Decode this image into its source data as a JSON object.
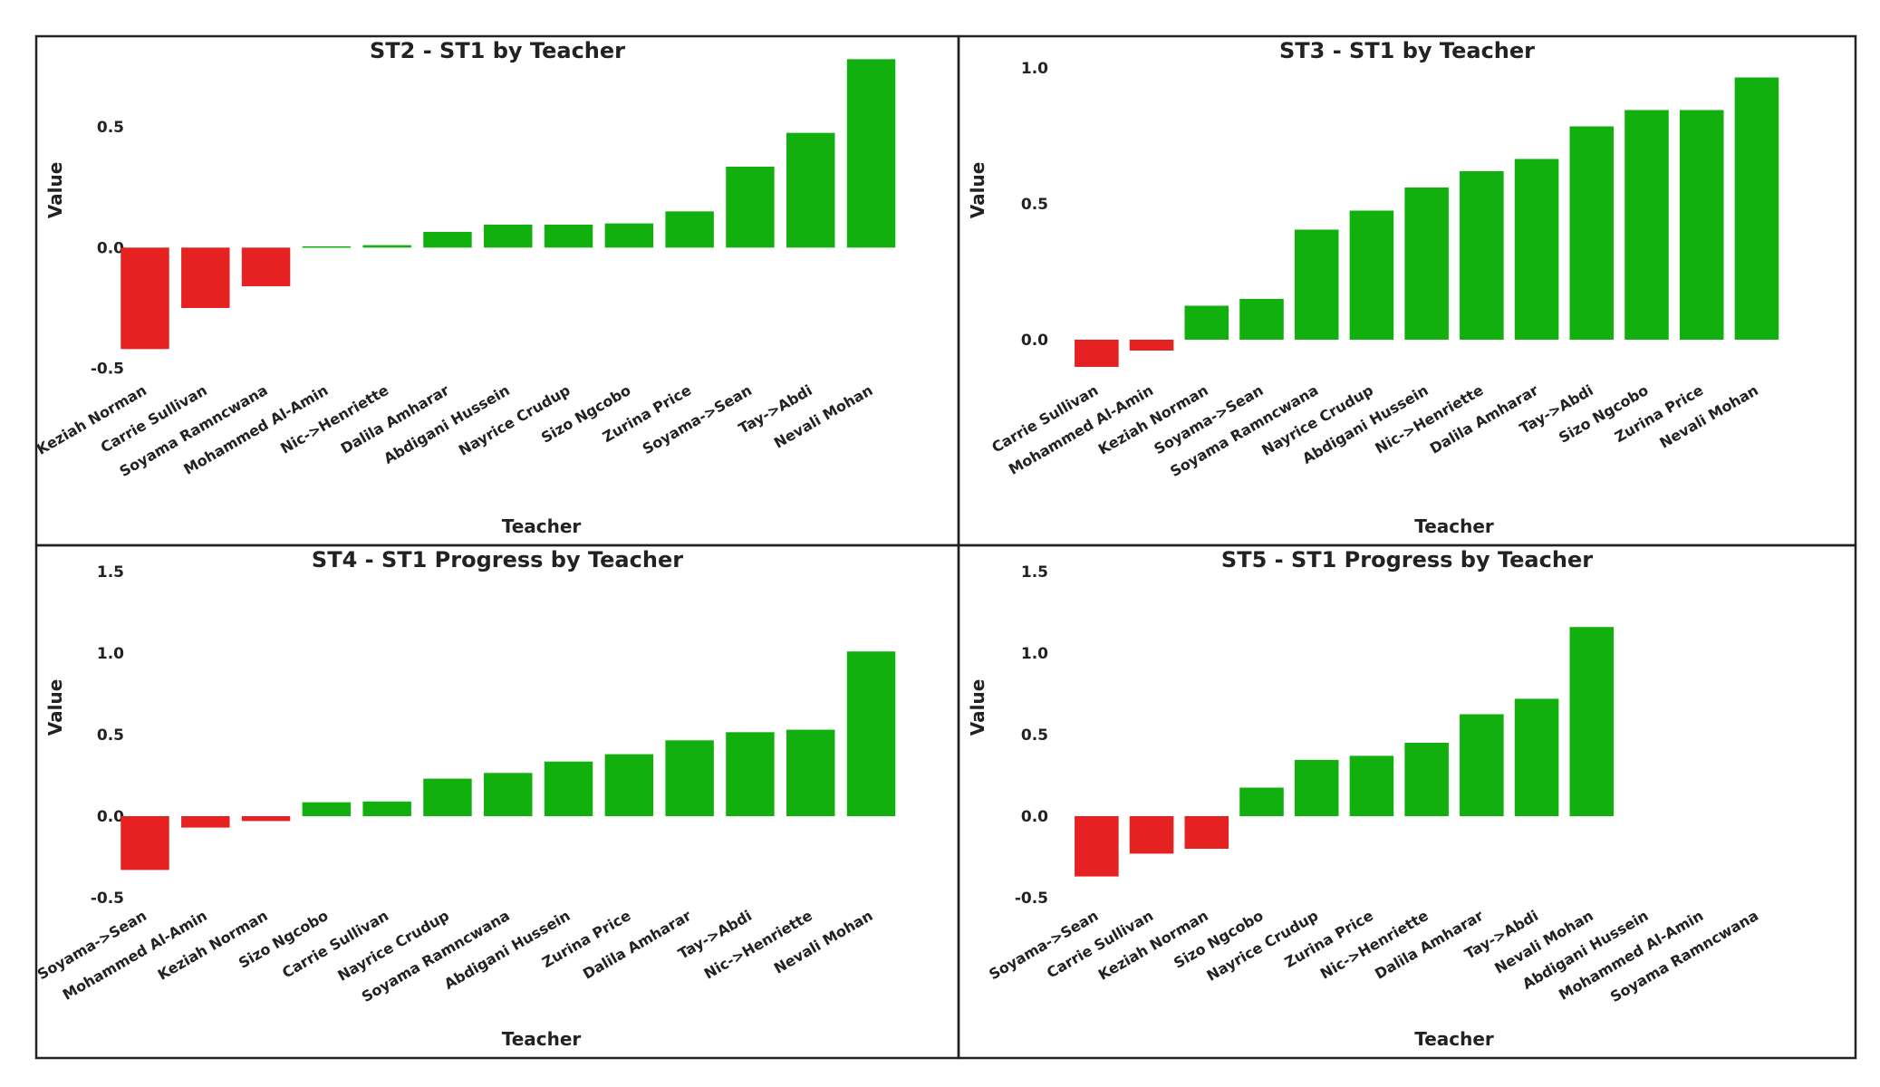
{
  "colors": {
    "positive": "#11b00e",
    "negative": "#e52121",
    "text": "#222222",
    "border": "#222222"
  },
  "chart_data": [
    {
      "type": "bar",
      "title": "ST2 - ST1 by Teacher",
      "xlabel": "Teacher",
      "ylabel": "Value",
      "ylim": [
        -0.55,
        0.8
      ],
      "yticks": [
        -0.5,
        0.0,
        0.5
      ],
      "grid": false,
      "categories": [
        "Keziah Norman",
        "Carrie Sullivan",
        "Soyama Ramncwana",
        "Mohammed Al-Amin",
        "Nic->Henriette",
        "Dalila Amharar",
        "Abdigani Hussein",
        "Nayrice Crudup",
        "Sizo Ngcobo",
        "Zurina Price",
        "Soyama->Sean",
        "Tay->Abdi",
        "Nevali Mohan"
      ],
      "values": [
        -0.42,
        -0.25,
        -0.16,
        0.005,
        0.01,
        0.065,
        0.095,
        0.095,
        0.1,
        0.15,
        0.335,
        0.475,
        0.78
      ]
    },
    {
      "type": "bar",
      "title": "ST3 - ST1 by Teacher",
      "xlabel": "Teacher",
      "ylabel": "Value",
      "ylim": [
        -0.15,
        1.05
      ],
      "yticks": [
        0.0,
        0.5,
        1.0
      ],
      "grid": false,
      "categories": [
        "Carrie Sullivan",
        "Mohammed Al-Amin",
        "Keziah Norman",
        "Soyama->Sean",
        "Soyama Ramncwana",
        "Nayrice Crudup",
        "Abdigani Hussein",
        "Nic->Henriette",
        "Dalila Amharar",
        "Tay->Abdi",
        "Sizo Ngcobo",
        "Zurina Price",
        "Nevali Mohan"
      ],
      "values": [
        -0.1,
        -0.04,
        0.125,
        0.15,
        0.405,
        0.475,
        0.56,
        0.62,
        0.665,
        0.785,
        0.845,
        0.845,
        0.965
      ]
    },
    {
      "type": "bar",
      "title": "ST4 - ST1 Progress by Teacher",
      "xlabel": "Teacher",
      "ylabel": "Value",
      "ylim": [
        -0.55,
        1.55
      ],
      "yticks": [
        -0.5,
        0.0,
        0.5,
        1.0,
        1.5
      ],
      "grid": false,
      "categories": [
        "Soyama->Sean",
        "Mohammed Al-Amin",
        "Keziah Norman",
        "Sizo Ngcobo",
        "Carrie Sullivan",
        "Nayrice Crudup",
        "Soyama Ramncwana",
        "Abdigani Hussein",
        "Zurina Price",
        "Dalila Amharar",
        "Tay->Abdi",
        "Nic->Henriette",
        "Nevali Mohan"
      ],
      "values": [
        -0.33,
        -0.07,
        -0.03,
        0.085,
        0.09,
        0.23,
        0.265,
        0.335,
        0.38,
        0.465,
        0.515,
        0.53,
        1.01
      ]
    },
    {
      "type": "bar",
      "title": "ST5 - ST1 Progress by Teacher",
      "xlabel": "Teacher",
      "ylabel": "Value",
      "ylim": [
        -0.55,
        1.55
      ],
      "yticks": [
        -0.5,
        0.0,
        0.5,
        1.0,
        1.5
      ],
      "grid": false,
      "categories": [
        "Soyama->Sean",
        "Carrie Sullivan",
        "Keziah Norman",
        "Sizo Ngcobo",
        "Nayrice Crudup",
        "Zurina Price",
        "Nic->Henriette",
        "Dalila Amharar",
        "Tay->Abdi",
        "Nevali Mohan",
        "Abdigani Hussein",
        "Mohammed Al-Amin",
        "Soyama Ramncwana"
      ],
      "values": [
        -0.37,
        -0.23,
        -0.2,
        0.175,
        0.345,
        0.37,
        0.45,
        0.625,
        0.72,
        1.16,
        null,
        null,
        null
      ]
    }
  ]
}
